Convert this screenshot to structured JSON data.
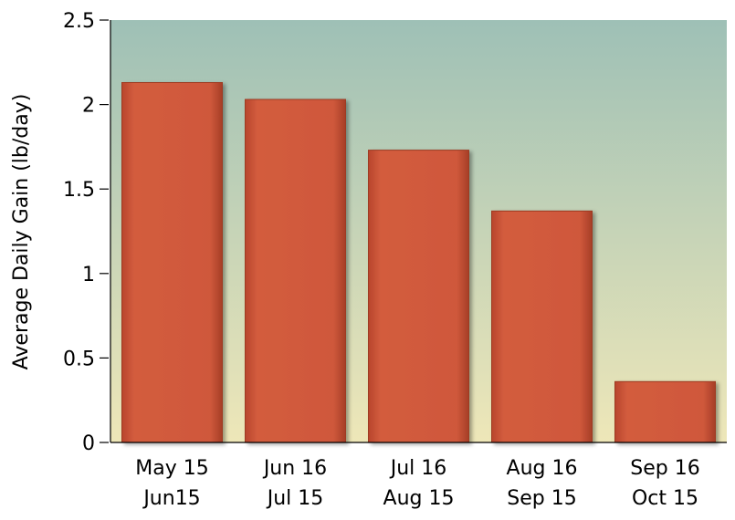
{
  "chart_data": {
    "type": "bar",
    "title": "",
    "xlabel": "",
    "ylabel": "Average Daily Gain (lb/day)",
    "categories": [
      [
        "May 15",
        "Jun15"
      ],
      [
        "Jun 16",
        "Jul 15"
      ],
      [
        "Jul 16",
        "Aug 15"
      ],
      [
        "Aug 16",
        "Sep 15"
      ],
      [
        "Sep 16",
        "Oct 15"
      ]
    ],
    "values": [
      2.13,
      2.03,
      1.73,
      1.37,
      0.36
    ],
    "ylim": [
      0,
      2.5
    ],
    "yticks": [
      "0",
      "0.5",
      "1",
      "1.5",
      "2",
      "2.5"
    ],
    "grid": false,
    "colors": {
      "bar": "#cc5538",
      "bar_edge": "#9e3a22",
      "background_top": "#9ec0b6",
      "background_bottom": "#eee7b8",
      "axis": "#000000"
    }
  }
}
